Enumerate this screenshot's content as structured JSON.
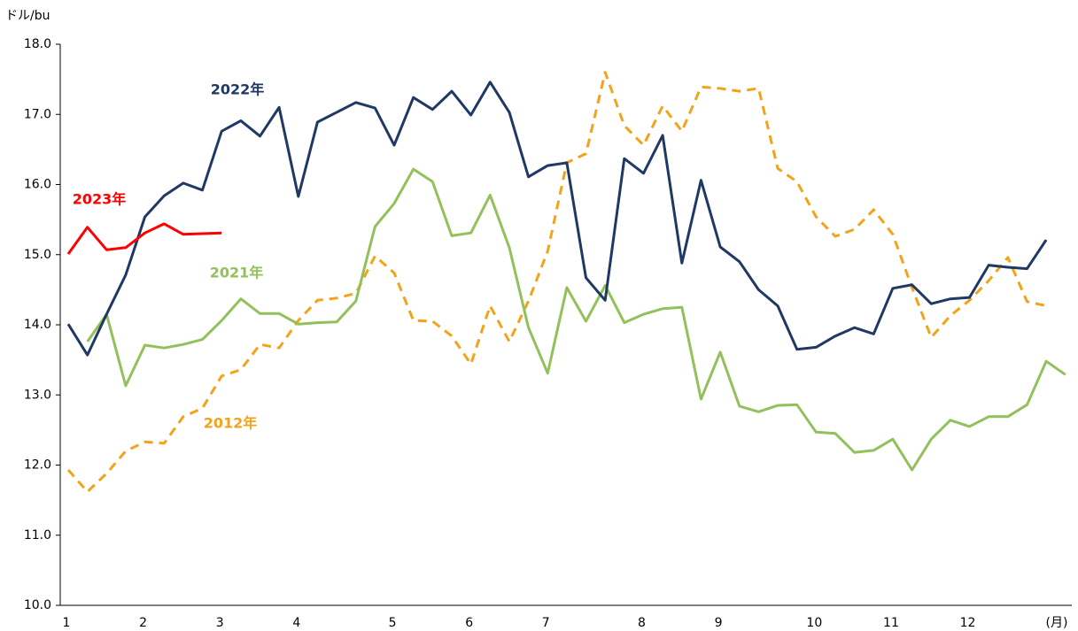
{
  "chart_data": {
    "type": "line",
    "y_label": "ドル/bu",
    "x_unit": "(月)",
    "categories": [
      "1",
      null,
      null,
      null,
      "2",
      null,
      null,
      null,
      "3",
      null,
      null,
      null,
      "4",
      null,
      null,
      null,
      null,
      "5",
      null,
      null,
      null,
      "6",
      null,
      null,
      null,
      "7",
      null,
      null,
      null,
      null,
      "8",
      null,
      null,
      null,
      "9",
      null,
      null,
      null,
      null,
      "10",
      null,
      null,
      null,
      "11",
      null,
      null,
      null,
      "12",
      null,
      null,
      null,
      null,
      null
    ],
    "ylim": [
      10,
      18
    ],
    "yticks": [
      {
        "value": 10,
        "label": "10.0"
      },
      {
        "value": 11,
        "label": "11.0"
      },
      {
        "value": 12,
        "label": "12.0"
      },
      {
        "value": 13,
        "label": "13.0"
      },
      {
        "value": 14,
        "label": "14.0"
      },
      {
        "value": 15,
        "label": "15.0"
      },
      {
        "value": 16,
        "label": "16.0"
      },
      {
        "value": 17,
        "label": "17.0"
      },
      {
        "value": 18,
        "label": "18.0"
      }
    ],
    "series": [
      {
        "name": "2012年",
        "color": "#f5a21b",
        "line_style": "dashed",
        "values": [
          11.93,
          11.62,
          11.88,
          12.2,
          12.33,
          12.31,
          12.69,
          12.81,
          13.27,
          13.36,
          13.72,
          13.67,
          14.06,
          14.35,
          14.38,
          14.45,
          14.98,
          14.74,
          14.06,
          14.05,
          13.84,
          13.44,
          14.27,
          13.76,
          14.34,
          15.05,
          16.31,
          16.44,
          17.6,
          16.84,
          16.56,
          17.12,
          16.76,
          17.39,
          17.37,
          17.33,
          17.37,
          16.23,
          16.04,
          15.54,
          15.26,
          15.36,
          15.64,
          15.29,
          14.53,
          13.82,
          14.13,
          14.35,
          14.63,
          14.96,
          14.33,
          14.27,
          null
        ]
      },
      {
        "name": "2021年",
        "color": "#92c05a",
        "line_style": "solid",
        "values": [
          null,
          13.76,
          14.15,
          13.13,
          13.71,
          13.67,
          13.72,
          13.79,
          14.06,
          14.37,
          14.16,
          14.16,
          14.01,
          14.03,
          14.04,
          14.34,
          15.4,
          15.73,
          16.22,
          16.04,
          15.27,
          15.31,
          15.85,
          15.1,
          13.96,
          13.31,
          14.53,
          14.05,
          14.56,
          14.03,
          14.15,
          14.23,
          14.25,
          12.94,
          13.61,
          12.84,
          12.76,
          12.85,
          12.86,
          12.47,
          12.45,
          12.18,
          12.21,
          12.37,
          11.93,
          12.37,
          12.64,
          12.55,
          12.69,
          12.69,
          12.86,
          13.48,
          13.29
        ]
      },
      {
        "name": "2022年",
        "color": "#1f3864",
        "line_style": "solid",
        "values": [
          14.01,
          13.57,
          14.15,
          14.71,
          15.54,
          15.84,
          16.02,
          15.92,
          16.76,
          16.91,
          16.69,
          17.1,
          15.83,
          16.89,
          17.03,
          17.17,
          17.09,
          16.56,
          17.24,
          17.07,
          17.33,
          16.99,
          17.46,
          17.03,
          16.11,
          16.27,
          16.31,
          14.67,
          14.35,
          16.37,
          16.16,
          16.7,
          14.88,
          16.06,
          15.11,
          14.9,
          14.5,
          14.27,
          13.65,
          13.68,
          13.84,
          13.96,
          13.87,
          14.52,
          14.57,
          14.3,
          14.37,
          14.39,
          14.85,
          14.82,
          14.8,
          15.21,
          null
        ]
      },
      {
        "name": "2023年",
        "color": "#ff0000",
        "line_style": "solid",
        "values": [
          15.01,
          15.39,
          15.07,
          15.1,
          15.31,
          15.44,
          15.29,
          15.3,
          15.31,
          null,
          null,
          null,
          null,
          null,
          null,
          null,
          null,
          null,
          null,
          null,
          null,
          null,
          null,
          null,
          null,
          null,
          null,
          null,
          null,
          null,
          null,
          null,
          null,
          null,
          null,
          null,
          null,
          null,
          null,
          null,
          null,
          null,
          null,
          null,
          null,
          null,
          null,
          null,
          null,
          null,
          null,
          null,
          null
        ]
      }
    ]
  }
}
